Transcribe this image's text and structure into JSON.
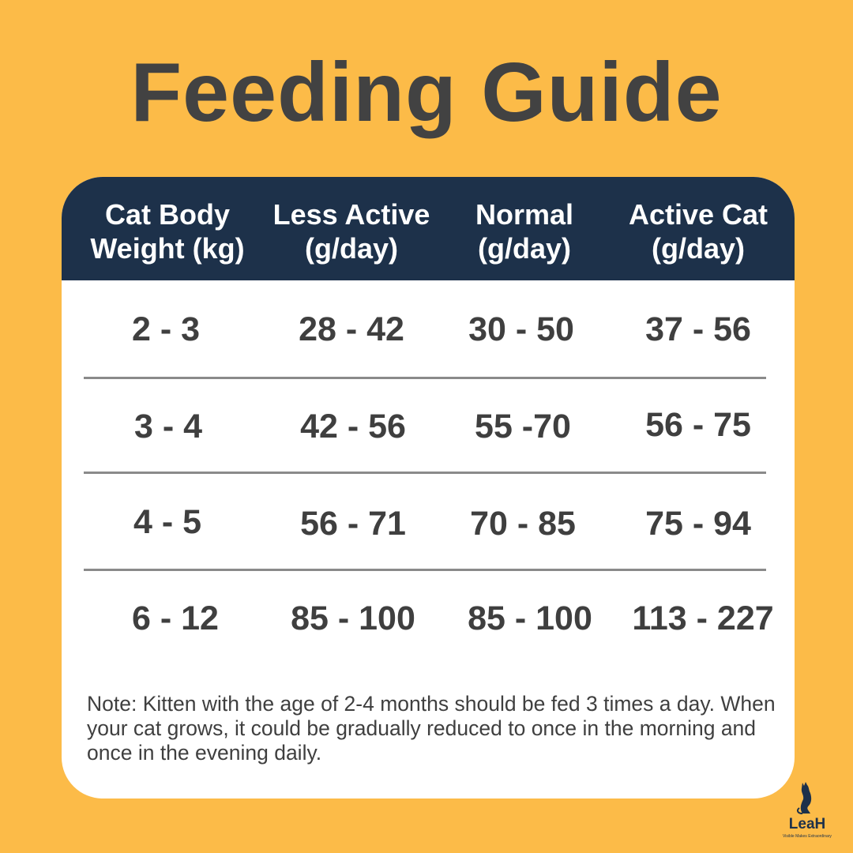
{
  "title": "Feeding Guide",
  "table": {
    "headers": [
      {
        "line1": "Cat Body",
        "line2": "Weight (kg)"
      },
      {
        "line1": "Less Active",
        "line2": "(g/day)"
      },
      {
        "line1": "Normal",
        "line2": "(g/day)"
      },
      {
        "line1": "Active Cat",
        "line2": "(g/day)"
      }
    ],
    "rows": [
      [
        "2 - 3",
        "28 - 42",
        "30 - 50",
        "37 - 56"
      ],
      [
        "3 - 4",
        "42 - 56",
        "55 -70",
        "56 - 75"
      ],
      [
        "4 - 5",
        "56 - 71",
        "70 - 85",
        "75 - 94"
      ],
      [
        "6 - 12",
        "85 - 100",
        "85 - 100",
        "113 - 227"
      ]
    ]
  },
  "note": "Note: Kitten with the age of 2-4 months should be fed 3 times a day. When your cat grows, it could be gradually reduced to once in the morning and once in the evening daily.",
  "logo": {
    "name": "LeaH",
    "tagline": "Visible Makes Extraordinary",
    "icon": "cat-icon"
  },
  "colors": {
    "background": "#FCBB48",
    "header": "#1D314A",
    "text": "#424242"
  }
}
